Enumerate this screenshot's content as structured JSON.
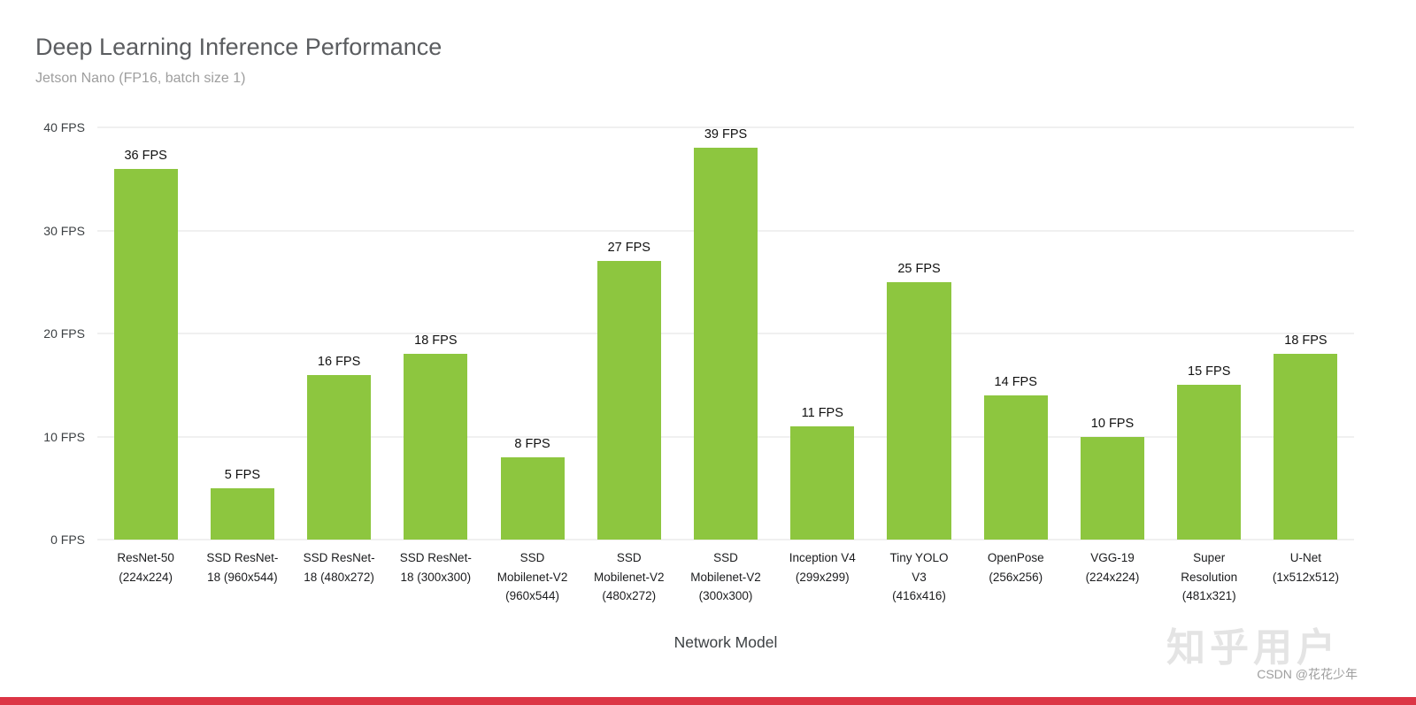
{
  "page": {
    "background": "#ffffff",
    "bottom_strip_color": "#dc3545"
  },
  "chart_data": {
    "type": "bar",
    "title": "Deep Learning Inference Performance",
    "subtitle": "Jetson Nano (FP16, batch size 1)",
    "xlabel": "Network Model",
    "ylabel": "",
    "ylim": [
      0,
      40
    ],
    "yticks": [
      0,
      10,
      20,
      30,
      40
    ],
    "ytick_labels": [
      "0 FPS",
      "10 FPS",
      "20 FPS",
      "30 FPS",
      "40 FPS"
    ],
    "grid": true,
    "legend": "none",
    "bar_color": "#8dc63f",
    "categories": [
      "ResNet-50\n(224x224)",
      "SSD ResNet-\n18 (960x544)",
      "SSD ResNet-\n18 (480x272)",
      "SSD ResNet-\n18 (300x300)",
      "SSD\nMobilenet-V2\n(960x544)",
      "SSD\nMobilenet-V2\n(480x272)",
      "SSD\nMobilenet-V2\n(300x300)",
      "Inception V4\n(299x299)",
      "Tiny YOLO\nV3\n(416x416)",
      "OpenPose\n(256x256)",
      "VGG-19\n(224x224)",
      "Super\nResolution\n(481x321)",
      "U-Net\n(1x512x512)"
    ],
    "values": [
      36,
      5,
      16,
      18,
      8,
      27,
      39,
      11,
      25,
      14,
      10,
      15,
      18
    ],
    "value_labels": [
      "36 FPS",
      "5 FPS",
      "16 FPS",
      "18 FPS",
      "8 FPS",
      "27 FPS",
      "39 FPS",
      "11 FPS",
      "25 FPS",
      "14 FPS",
      "10 FPS",
      "15 FPS",
      "18 FPS"
    ]
  },
  "watermarks": {
    "zhihu": "知乎用户",
    "csdn": "CSDN @花花少年"
  }
}
